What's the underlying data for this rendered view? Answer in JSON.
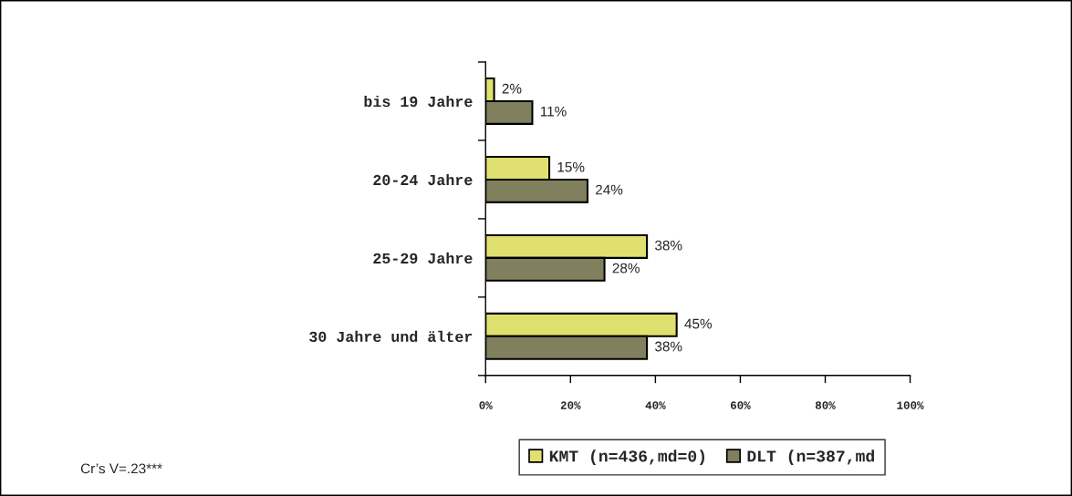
{
  "chart_data": {
    "type": "bar",
    "orientation": "horizontal",
    "categories": [
      "bis 19 Jahre",
      "20-24 Jahre",
      "25-29 Jahre",
      "30 Jahre und älter"
    ],
    "series": [
      {
        "name": "KMT (n=436,md=0)",
        "color": "#e0e070",
        "values": [
          2,
          15,
          38,
          45
        ],
        "value_labels": [
          "2%",
          "15%",
          "38%",
          "45%"
        ]
      },
      {
        "name": "DLT (n=387,md",
        "color": "#80805f",
        "values": [
          11,
          24,
          28,
          38
        ],
        "value_labels": [
          "11%",
          "24%",
          "28%",
          "38%"
        ]
      }
    ],
    "xlim": [
      0,
      100
    ],
    "xticks": [
      {
        "value": 0,
        "label": "0%"
      },
      {
        "value": 20,
        "label": "20%"
      },
      {
        "value": 40,
        "label": "40%"
      },
      {
        "value": 60,
        "label": "60%"
      },
      {
        "value": 80,
        "label": "80%"
      },
      {
        "value": 100,
        "label": "100%"
      }
    ],
    "grid": false,
    "legend": "bottom",
    "annotations": [
      "Cr’s V=.23***"
    ]
  }
}
